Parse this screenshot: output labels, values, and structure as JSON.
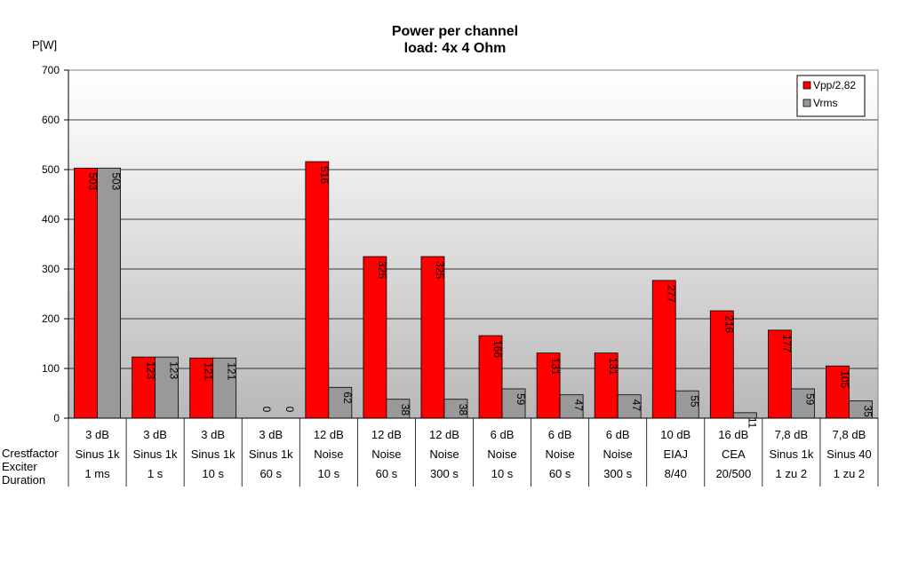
{
  "chart_data": {
    "type": "bar",
    "title": "Power per channel",
    "subtitle": "load:  4x 4 Ohm",
    "ylabel": "P[W]",
    "xlabel": "",
    "ylim": [
      0,
      700
    ],
    "yticks": [
      "0",
      "100",
      "200",
      "300",
      "400",
      "500",
      "600",
      "700"
    ],
    "grid": true,
    "legend_position": "top-right",
    "row_labels": [
      "Crestfactor",
      "Exciter",
      "Duration"
    ],
    "categories": [
      {
        "crest": "3 dB",
        "exciter": "Sinus 1k",
        "duration": "1 ms"
      },
      {
        "crest": "3 dB",
        "exciter": "Sinus 1k",
        "duration": "1 s"
      },
      {
        "crest": "3 dB",
        "exciter": "Sinus 1k",
        "duration": "10 s"
      },
      {
        "crest": "3 dB",
        "exciter": "Sinus 1k",
        "duration": "60 s"
      },
      {
        "crest": "12 dB",
        "exciter": "Noise",
        "duration": "10 s"
      },
      {
        "crest": "12 dB",
        "exciter": "Noise",
        "duration": "60 s"
      },
      {
        "crest": "12 dB",
        "exciter": "Noise",
        "duration": "300 s"
      },
      {
        "crest": "6 dB",
        "exciter": "Noise",
        "duration": "10 s"
      },
      {
        "crest": "6 dB",
        "exciter": "Noise",
        "duration": "60 s"
      },
      {
        "crest": "6 dB",
        "exciter": "Noise",
        "duration": "300 s"
      },
      {
        "crest": "10 dB",
        "exciter": "EIAJ",
        "duration": "8/40"
      },
      {
        "crest": "16 dB",
        "exciter": "CEA",
        "duration": "20/500"
      },
      {
        "crest": "7,8 dB",
        "exciter": "Sinus 1k",
        "duration": "1 zu 2"
      },
      {
        "crest": "7,8 dB",
        "exciter": "Sinus 40",
        "duration": "1 zu 2"
      }
    ],
    "series": [
      {
        "name": "Vpp/2,82",
        "color": "#ff0000",
        "values": [
          503,
          123,
          121,
          0,
          516,
          325,
          325,
          166,
          131,
          131,
          277,
          216,
          177,
          105
        ]
      },
      {
        "name": "Vrms",
        "color": "#999999",
        "values": [
          503,
          123,
          121,
          0,
          62,
          38,
          38,
          59,
          47,
          47,
          55,
          11,
          59,
          35
        ]
      }
    ]
  }
}
